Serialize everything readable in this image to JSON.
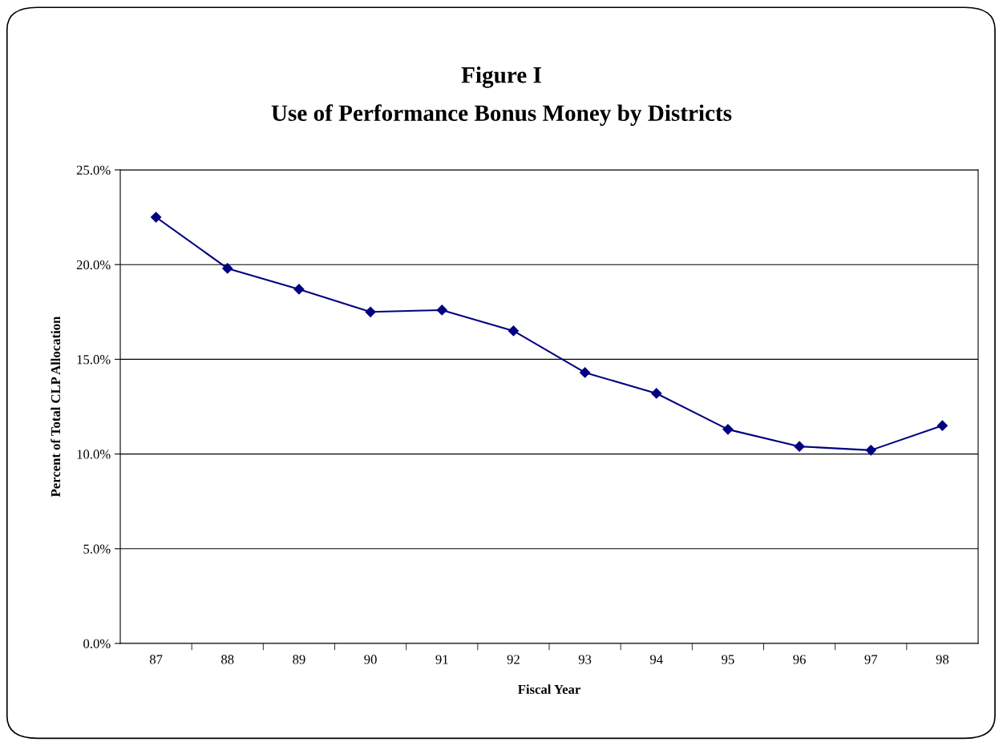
{
  "chart_data": {
    "type": "line",
    "title": "Figure I\nUse of Performance Bonus Money by Districts",
    "xlabel": "Fiscal Year",
    "ylabel": "Percent of Total CLP Allocation",
    "categories": [
      "87",
      "88",
      "89",
      "90",
      "91",
      "92",
      "93",
      "94",
      "95",
      "96",
      "97",
      "98"
    ],
    "series": [
      {
        "color": "#000080",
        "values": [
          22.5,
          19.8,
          18.7,
          17.5,
          17.6,
          16.5,
          14.3,
          13.2,
          11.3,
          10.4,
          10.2,
          11.5
        ]
      }
    ],
    "ylim": [
      0,
      25
    ],
    "yticks": [
      {
        "value": 0,
        "label": "0.0%"
      },
      {
        "value": 5,
        "label": "5.0%"
      },
      {
        "value": 10,
        "label": "10.0%"
      },
      {
        "value": 15,
        "label": "15.0%"
      },
      {
        "value": 20,
        "label": "20.0%"
      },
      {
        "value": 25,
        "label": "25.0%"
      }
    ],
    "grid": "y",
    "legend": false,
    "marker": "diamond",
    "line_style": "solid"
  }
}
